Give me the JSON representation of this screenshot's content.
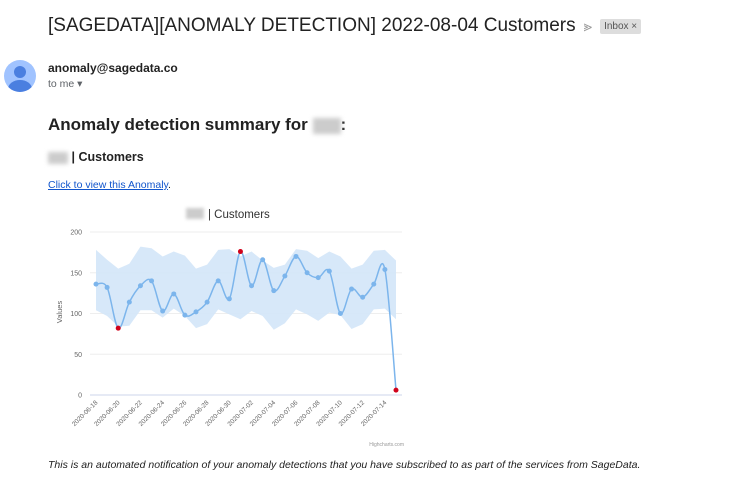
{
  "email": {
    "subject": "[SAGEDATA][ANOMALY DETECTION] 2022-08-04 Customers",
    "label_badge": "Inbox ×",
    "sender": "anomaly@sagedata.co",
    "recipient": "to me ▾",
    "heading": "Anomaly detection summary for",
    "heading_suffix": ":",
    "subheading": "| Customers",
    "link_text": "Click to view this Anomaly",
    "link_suffix": ".",
    "footer": "This is an automated notification of your anomaly detections that you have subscribed to as part of the services from SageData."
  },
  "colors": {
    "line": "#7cb5ec",
    "band": "#d3e6f8",
    "anomaly": "#d0021b"
  },
  "chart_data": {
    "type": "line",
    "title": "| Customers",
    "ylabel": "Values",
    "ylim": [
      0,
      200
    ],
    "yticks": [
      0,
      50,
      100,
      150,
      200
    ],
    "credit": "Highcharts.com",
    "x": [
      "2020-06-18",
      "2020-06-19",
      "2020-06-20",
      "2020-06-21",
      "2020-06-22",
      "2020-06-23",
      "2020-06-24",
      "2020-06-25",
      "2020-06-26",
      "2020-06-27",
      "2020-06-28",
      "2020-06-29",
      "2020-06-30",
      "2020-07-01",
      "2020-07-02",
      "2020-07-03",
      "2020-07-04",
      "2020-07-05",
      "2020-07-06",
      "2020-07-07",
      "2020-07-08",
      "2020-07-09",
      "2020-07-10",
      "2020-07-11",
      "2020-07-12",
      "2020-07-13",
      "2020-07-14",
      "2020-07-15"
    ],
    "xticks": [
      "2020-06-18",
      "2020-06-20",
      "2020-06-22",
      "2020-06-24",
      "2020-06-26",
      "2020-06-28",
      "2020-06-30",
      "2020-07-02",
      "2020-07-04",
      "2020-07-06",
      "2020-07-08",
      "2020-07-10",
      "2020-07-12",
      "2020-07-14"
    ],
    "values": [
      136,
      132,
      82,
      114,
      134,
      140,
      103,
      124,
      98,
      102,
      114,
      140,
      118,
      176,
      134,
      166,
      128,
      146,
      170,
      150,
      144,
      152,
      100,
      130,
      120,
      136,
      154,
      6
    ],
    "upper": [
      178,
      166,
      155,
      161,
      182,
      180,
      170,
      176,
      171,
      155,
      160,
      178,
      179,
      170,
      176,
      165,
      156,
      160,
      179,
      177,
      168,
      176,
      170,
      155,
      160,
      177,
      178,
      165
    ],
    "lower": [
      104,
      97,
      84,
      85,
      104,
      104,
      95,
      106,
      97,
      82,
      87,
      105,
      99,
      93,
      103,
      97,
      80,
      88,
      105,
      99,
      91,
      101,
      98,
      81,
      87,
      105,
      106,
      93
    ],
    "anomalies": [
      "2020-06-20",
      "2020-07-01",
      "2020-07-15"
    ]
  }
}
